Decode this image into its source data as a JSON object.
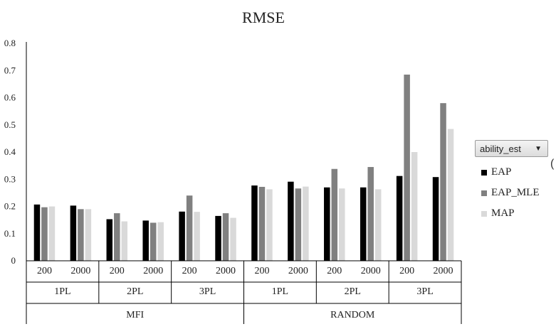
{
  "chart_data": {
    "type": "bar",
    "title": "RMSE",
    "xlabel": "",
    "ylabel": "",
    "ylim": [
      0,
      0.8
    ],
    "yticks": [
      "0",
      "0.1",
      "0.2",
      "0.3",
      "0.4",
      "0.5",
      "0.6",
      "0.7",
      "0.8"
    ],
    "grid": false,
    "legend_position": "right",
    "filter_label": "ability_est",
    "groups": [
      {
        "label": "MFI",
        "models": [
          {
            "label": "1PL",
            "sizes": [
              "200",
              "2000"
            ]
          },
          {
            "label": "2PL",
            "sizes": [
              "200",
              "2000"
            ]
          },
          {
            "label": "3PL",
            "sizes": [
              "200",
              "2000"
            ]
          }
        ]
      },
      {
        "label": "RANDOM",
        "models": [
          {
            "label": "1PL",
            "sizes": [
              "200",
              "2000"
            ]
          },
          {
            "label": "2PL",
            "sizes": [
              "200",
              "2000"
            ]
          },
          {
            "label": "3PL",
            "sizes": [
              "200",
              "2000"
            ]
          }
        ]
      }
    ],
    "series": [
      {
        "name": "EAP",
        "color": "#000000",
        "values": [
          0.207,
          0.203,
          0.153,
          0.148,
          0.181,
          0.165,
          0.277,
          0.291,
          0.27,
          0.27,
          0.312,
          0.308
        ]
      },
      {
        "name": "EAP_MLE",
        "color": "#808080",
        "values": [
          0.197,
          0.19,
          0.175,
          0.14,
          0.24,
          0.175,
          0.272,
          0.266,
          0.338,
          0.345,
          0.685,
          0.58
        ]
      },
      {
        "name": "MAP",
        "color": "#d9d9d9",
        "values": [
          0.2,
          0.19,
          0.145,
          0.142,
          0.18,
          0.158,
          0.263,
          0.273,
          0.266,
          0.263,
          0.4,
          0.485
        ]
      }
    ],
    "edge_mark": "("
  }
}
